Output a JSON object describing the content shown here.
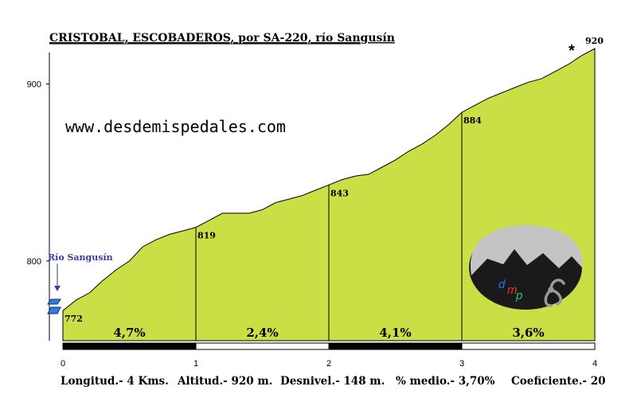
{
  "chart_data": {
    "type": "area",
    "title": "CRISTOBAL, ESCOBADEROS, por SA-220, río Sangusín",
    "xlim": [
      0,
      4
    ],
    "ylim": [
      755,
      920
    ],
    "y_ticks": [
      800,
      900
    ],
    "x_ticks": [
      0,
      1,
      2,
      3,
      4
    ],
    "profile": {
      "x": [
        0,
        0.1,
        0.2,
        0.3,
        0.4,
        0.5,
        0.6,
        0.7,
        0.8,
        0.9,
        1.0,
        1.1,
        1.2,
        1.3,
        1.4,
        1.5,
        1.6,
        1.7,
        1.8,
        1.9,
        2.0,
        2.1,
        2.2,
        2.3,
        2.4,
        2.5,
        2.6,
        2.7,
        2.8,
        2.9,
        3.0,
        3.1,
        3.2,
        3.3,
        3.4,
        3.5,
        3.6,
        3.7,
        3.8,
        3.9,
        4.0
      ],
      "y": [
        772,
        778,
        782,
        789,
        795,
        800,
        808,
        812,
        815,
        817,
        819,
        823,
        827,
        827,
        827,
        829,
        833,
        835,
        837,
        840,
        843,
        846,
        848,
        849,
        853,
        857,
        862,
        866,
        871,
        877,
        884,
        888,
        892,
        895,
        898,
        901,
        903,
        907,
        911,
        916,
        920
      ]
    },
    "point_labels": [
      {
        "x": 0,
        "y": 772,
        "label": "772"
      },
      {
        "x": 1,
        "y": 819,
        "label": "819"
      },
      {
        "x": 2,
        "y": 843,
        "label": "843"
      },
      {
        "x": 3,
        "y": 884,
        "label": "884"
      },
      {
        "x": 4,
        "y": 920,
        "label": "920"
      }
    ],
    "segments": [
      {
        "start": 0,
        "end": 1,
        "gradient": "4,7%"
      },
      {
        "start": 1,
        "end": 2,
        "gradient": "2,4%"
      },
      {
        "start": 2,
        "end": 3,
        "gradient": "4,1%"
      },
      {
        "start": 3,
        "end": 4,
        "gradient": "3,6%"
      }
    ],
    "fill_color": "#c9df45",
    "start_annotation": "Río Sangusín",
    "summit_marker": "*"
  },
  "website": "www.desdemispedales.com",
  "logo_text": {
    "d": "d",
    "m": "m",
    "p": "p"
  },
  "footer": {
    "longitud": "Longitud.- 4 Kms.",
    "altitud": "Altitud.- 920 m.",
    "desnivel": "Desnivel.- 148 m.",
    "medio": "% medio.- 3,70%",
    "coeficiente": "Coeficiente.- 20"
  }
}
